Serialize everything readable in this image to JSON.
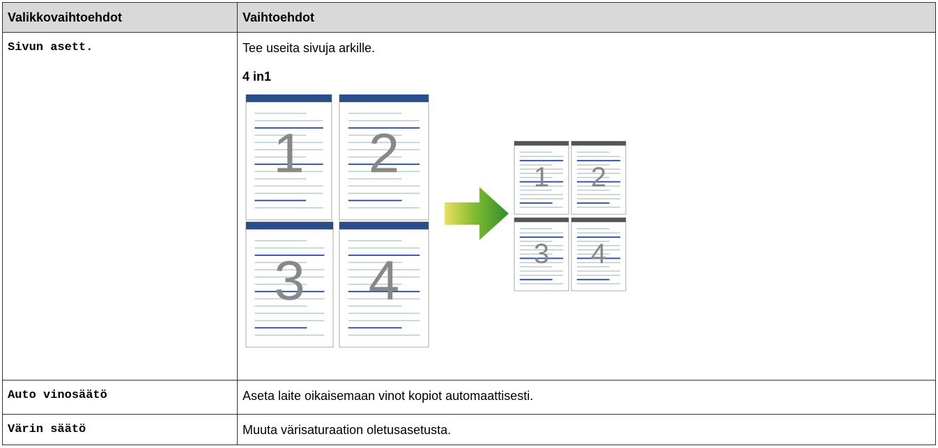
{
  "table": {
    "header": [
      "Valikkovaihtoehdot",
      "Vaihtoehdot"
    ],
    "rows": [
      {
        "menu": "Sivun asett.",
        "description": "Tee useita sivuja arkille.",
        "subheading": "4 in1",
        "figure_pages": [
          "1",
          "2",
          "3",
          "4"
        ]
      },
      {
        "menu": "Auto vinosäätö",
        "description": "Aseta laite oikaisemaan vinot kopiot automaattisesti."
      },
      {
        "menu": "Värin säätö",
        "description": "Muuta värisaturaation oletusasetusta."
      }
    ]
  }
}
